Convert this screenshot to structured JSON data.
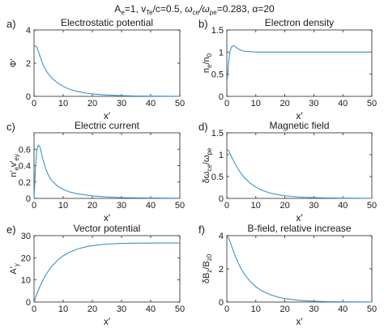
{
  "suptitle": {
    "A": "A",
    "A_sub": "e",
    "A_val": "=1, ",
    "v": "v",
    "v_sub": "Te",
    "v_val": "/c=0.5, ",
    "w": "ω",
    "w_sub1": "ce",
    "w_slash": "/ω",
    "w_sub2": "pe",
    "w_val": "=0.283, ",
    "alpha": "α=20"
  },
  "chart_data": [
    {
      "type": "line",
      "panel_label": "a)",
      "title": "Electrostatic potential",
      "xlabel": "x′",
      "ylabel": [
        {
          "t": "Φ′",
          "s": "n"
        }
      ],
      "xlim": [
        0,
        50
      ],
      "ylim": [
        0,
        4
      ],
      "xticks": [
        0,
        10,
        20,
        30,
        40,
        50
      ],
      "yticks": [
        0,
        2,
        4
      ],
      "grid": false,
      "color": "#3b93cc",
      "series": [
        {
          "x": [
            0,
            1,
            2,
            3,
            4,
            5,
            6,
            8,
            10,
            12,
            15,
            18,
            20,
            25,
            30,
            35,
            40,
            45,
            50
          ],
          "y": [
            3.1,
            2.95,
            2.45,
            1.95,
            1.6,
            1.33,
            1.12,
            0.82,
            0.6,
            0.44,
            0.29,
            0.19,
            0.15,
            0.08,
            0.045,
            0.025,
            0.015,
            0.01,
            0.006
          ]
        }
      ]
    },
    {
      "type": "line",
      "panel_label": "b)",
      "title": "Electron density",
      "xlabel": "x′",
      "ylabel": [
        {
          "t": "n",
          "s": "n"
        },
        {
          "t": "e",
          "s": "sub"
        },
        {
          "t": "/n",
          "s": "n"
        },
        {
          "t": "0",
          "s": "sub"
        }
      ],
      "xlim": [
        0,
        50
      ],
      "ylim": [
        0,
        1.5
      ],
      "xticks": [
        0,
        10,
        20,
        30,
        40,
        50
      ],
      "yticks": [
        0,
        0.5,
        1,
        1.5
      ],
      "grid": false,
      "color": "#3b93cc",
      "series": [
        {
          "x": [
            0,
            0.3,
            0.6,
            1,
            1.5,
            2,
            2.5,
            3,
            4,
            5,
            6,
            8,
            10,
            15,
            20,
            30,
            40,
            50
          ],
          "y": [
            0.3,
            0.5,
            0.75,
            0.98,
            1.1,
            1.14,
            1.14,
            1.12,
            1.07,
            1.04,
            1.02,
            1.01,
            1.0,
            1.0,
            1.0,
            1.0,
            1.0,
            1.0
          ]
        }
      ]
    },
    {
      "type": "line",
      "panel_label": "c)",
      "title": "Electric current",
      "xlabel": "x′",
      "ylabel": [
        {
          "t": "n′",
          "s": "n"
        },
        {
          "t": "e",
          "s": "sub"
        },
        {
          "t": "v′",
          "s": "n"
        },
        {
          "t": "ey",
          "s": "sub"
        }
      ],
      "xlim": [
        0,
        50
      ],
      "ylim": [
        0,
        0.8
      ],
      "xticks": [
        0,
        10,
        20,
        30,
        40,
        50
      ],
      "yticks": [
        0,
        0.2,
        0.4,
        0.6
      ],
      "grid": false,
      "color": "#3b93cc",
      "series": [
        {
          "x": [
            0,
            0.5,
            1,
            1.5,
            2,
            2.5,
            3,
            4,
            5,
            6,
            8,
            10,
            12,
            15,
            20,
            25,
            30,
            40,
            50
          ],
          "y": [
            0,
            0.38,
            0.6,
            0.65,
            0.63,
            0.56,
            0.48,
            0.36,
            0.28,
            0.22,
            0.15,
            0.11,
            0.08,
            0.055,
            0.03,
            0.018,
            0.01,
            0.004,
            0.002
          ]
        }
      ]
    },
    {
      "type": "line",
      "panel_label": "d)",
      "title": "Magnetic field",
      "xlabel": "x′",
      "ylabel": [
        {
          "t": "δω",
          "s": "n"
        },
        {
          "t": "ce",
          "s": "sub"
        },
        {
          "t": "/ω",
          "s": "n"
        },
        {
          "t": "pe",
          "s": "sub"
        }
      ],
      "xlim": [
        0,
        50
      ],
      "ylim": [
        0,
        1.5
      ],
      "xticks": [
        0,
        10,
        20,
        30,
        40,
        50
      ],
      "yticks": [
        0,
        0.5,
        1,
        1.5
      ],
      "grid": false,
      "color": "#3b93cc",
      "series": [
        {
          "x": [
            0,
            0.5,
            1,
            2,
            3,
            4,
            5,
            6,
            8,
            10,
            12,
            15,
            18,
            20,
            25,
            30,
            35,
            40,
            45,
            50
          ],
          "y": [
            1.12,
            1.1,
            1.04,
            0.9,
            0.77,
            0.66,
            0.56,
            0.48,
            0.35,
            0.26,
            0.19,
            0.12,
            0.08,
            0.06,
            0.03,
            0.017,
            0.01,
            0.006,
            0.004,
            0.002
          ]
        }
      ]
    },
    {
      "type": "line",
      "panel_label": "e)",
      "title": "Vector potential",
      "xlabel": "x′",
      "ylabel": [
        {
          "t": "A′",
          "s": "n"
        },
        {
          "t": "y",
          "s": "sub"
        }
      ],
      "xlim": [
        0,
        50
      ],
      "ylim": [
        0,
        30
      ],
      "xticks": [
        0,
        10,
        20,
        30,
        40,
        50
      ],
      "yticks": [
        0,
        10,
        20,
        30
      ],
      "grid": false,
      "color": "#3b93cc",
      "series": [
        {
          "x": [
            0,
            1,
            2,
            3,
            4,
            5,
            6,
            8,
            10,
            12,
            15,
            18,
            20,
            25,
            30,
            35,
            40,
            45,
            50
          ],
          "y": [
            0,
            3.8,
            7.0,
            9.8,
            12.2,
            14.2,
            16.0,
            18.8,
            20.9,
            22.4,
            24.0,
            25.0,
            25.5,
            26.2,
            26.5,
            26.6,
            26.65,
            26.7,
            26.7
          ]
        }
      ]
    },
    {
      "type": "line",
      "panel_label": "f)",
      "title": "B-field, relative increase",
      "xlabel": "x′",
      "ylabel": [
        {
          "t": "δB",
          "s": "n"
        },
        {
          "t": "z",
          "s": "sub"
        },
        {
          "t": "/B",
          "s": "n"
        },
        {
          "t": "z0",
          "s": "sub"
        }
      ],
      "xlim": [
        0,
        50
      ],
      "ylim": [
        0,
        4
      ],
      "xticks": [
        0,
        10,
        20,
        30,
        40,
        50
      ],
      "yticks": [
        0,
        2,
        4
      ],
      "grid": false,
      "color": "#3b93cc",
      "series": [
        {
          "x": [
            0,
            0.5,
            1,
            2,
            3,
            4,
            5,
            6,
            8,
            10,
            12,
            15,
            18,
            20,
            25,
            30,
            35,
            40,
            45,
            50
          ],
          "y": [
            3.95,
            3.88,
            3.7,
            3.2,
            2.72,
            2.32,
            1.98,
            1.7,
            1.25,
            0.92,
            0.68,
            0.44,
            0.28,
            0.21,
            0.1,
            0.05,
            0.025,
            0.013,
            0.007,
            0.004
          ]
        }
      ]
    }
  ]
}
